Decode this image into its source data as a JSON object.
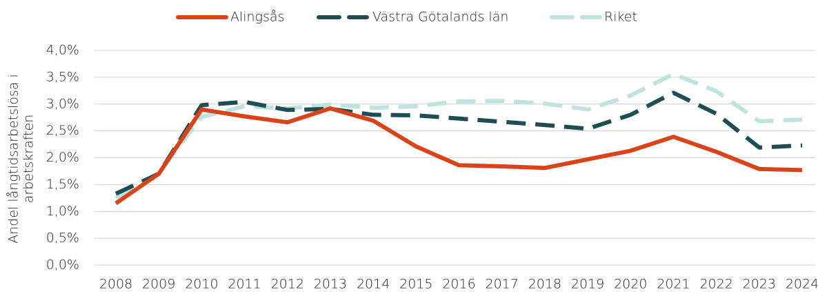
{
  "chart_data": {
    "type": "line",
    "ylabel": [
      "Andel långtidsarbetslösa i",
      "arbetskraften"
    ],
    "categories": [
      "2008",
      "2009",
      "2010",
      "2011",
      "2012",
      "2013",
      "2014",
      "2015",
      "2016",
      "2017",
      "2018",
      "2019",
      "2020",
      "2021",
      "2022",
      "2023",
      "2024"
    ],
    "series": [
      {
        "name": "Alingsås",
        "color": "#d9431a",
        "dash": "solid",
        "values": [
          1.15,
          1.7,
          2.9,
          2.77,
          2.66,
          2.92,
          2.69,
          2.21,
          1.86,
          1.84,
          1.81,
          1.97,
          2.13,
          2.39,
          2.11,
          1.79,
          1.77
        ]
      },
      {
        "name": "Västra Götalands län",
        "color": "#1e4d55",
        "dash": "dashed",
        "values": [
          1.33,
          1.7,
          2.98,
          3.04,
          2.89,
          2.91,
          2.8,
          2.79,
          2.73,
          2.67,
          2.61,
          2.54,
          2.8,
          3.21,
          2.82,
          2.19,
          2.23
        ]
      },
      {
        "name": "Riket",
        "color": "#bfe3df",
        "dash": "dashed",
        "values": [
          1.25,
          1.72,
          2.76,
          2.96,
          2.92,
          2.99,
          2.93,
          2.96,
          3.05,
          3.06,
          3.01,
          2.9,
          3.16,
          3.56,
          3.24,
          2.68,
          2.71
        ]
      }
    ],
    "ylim": [
      0,
      4
    ],
    "yticks": [
      {
        "value": 0,
        "label": "0,0%"
      },
      {
        "value": 0.5,
        "label": "0,5%"
      },
      {
        "value": 1,
        "label": "1,0%"
      },
      {
        "value": 1.5,
        "label": "1,5%"
      },
      {
        "value": 2,
        "label": "2,0%"
      },
      {
        "value": 2.5,
        "label": "2,5%"
      },
      {
        "value": 3,
        "label": "3,0%"
      },
      {
        "value": 3.5,
        "label": "3,5%"
      },
      {
        "value": 4,
        "label": "4,0%"
      }
    ],
    "grid": true,
    "legend": "top"
  }
}
